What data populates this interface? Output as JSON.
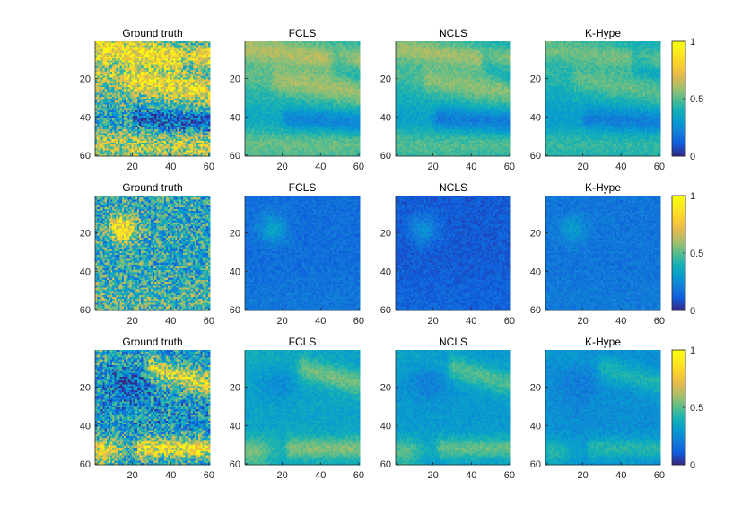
{
  "chart_data": {
    "type": "heatmap",
    "colormap": "parula",
    "grid": false,
    "rows": [
      {
        "panels": [
          {
            "title": "Ground truth",
            "xticks": [
              "20",
              "40",
              "60"
            ],
            "yticks": [
              "20",
              "40",
              "60"
            ]
          },
          {
            "title": "FCLS",
            "xticks": [
              "20",
              "40",
              "60"
            ],
            "yticks": [
              "20",
              "40",
              "60"
            ]
          },
          {
            "title": "NCLS",
            "xticks": [
              "20",
              "40",
              "60"
            ],
            "yticks": [
              "20",
              "40",
              "60"
            ]
          },
          {
            "title": "K-Hype",
            "xticks": [
              "20",
              "40",
              "60"
            ],
            "yticks": [
              "20",
              "40",
              "60"
            ]
          }
        ],
        "colorbar": {
          "ticks": [
            "0",
            "0.5",
            "1"
          ],
          "range": [
            0,
            1
          ]
        }
      },
      {
        "panels": [
          {
            "title": "Ground truth",
            "xticks": [
              "20",
              "40",
              "60"
            ],
            "yticks": [
              "20",
              "40",
              "60"
            ]
          },
          {
            "title": "FCLS",
            "xticks": [
              "20",
              "40",
              "60"
            ],
            "yticks": [
              "20",
              "40",
              "60"
            ]
          },
          {
            "title": "NCLS",
            "xticks": [
              "20",
              "40",
              "60"
            ],
            "yticks": [
              "20",
              "40",
              "60"
            ]
          },
          {
            "title": "K-Hype",
            "xticks": [
              "20",
              "40",
              "60"
            ],
            "yticks": [
              "20",
              "40",
              "60"
            ]
          }
        ],
        "colorbar": {
          "ticks": [
            "0",
            "0.5",
            "1"
          ],
          "range": [
            0,
            1
          ]
        }
      },
      {
        "panels": [
          {
            "title": "Ground truth",
            "xticks": [
              "20",
              "40",
              "60"
            ],
            "yticks": [
              "20",
              "40",
              "60"
            ]
          },
          {
            "title": "FCLS",
            "xticks": [
              "20",
              "40",
              "60"
            ],
            "yticks": [
              "20",
              "40",
              "60"
            ]
          },
          {
            "title": "NCLS",
            "xticks": [
              "20",
              "40",
              "60"
            ],
            "yticks": [
              "20",
              "40",
              "60"
            ]
          },
          {
            "title": "K-Hype",
            "xticks": [
              "20",
              "40",
              "60"
            ],
            "yticks": [
              "20",
              "40",
              "60"
            ]
          }
        ],
        "colorbar": {
          "ticks": [
            "0",
            "0.5",
            "1"
          ],
          "range": [
            0,
            1
          ]
        }
      }
    ],
    "axis_range": {
      "x": [
        1,
        60
      ],
      "y": [
        1,
        60
      ]
    },
    "estimated_mean_abundance": [
      {
        "Ground truth": 0.55,
        "FCLS": 0.42,
        "NCLS": 0.4,
        "K-Hype": 0.38
      },
      {
        "Ground truth": 0.45,
        "FCLS": 0.15,
        "NCLS": 0.12,
        "K-Hype": 0.2
      },
      {
        "Ground truth": 0.4,
        "FCLS": 0.42,
        "NCLS": 0.38,
        "K-Hype": 0.32
      }
    ]
  }
}
